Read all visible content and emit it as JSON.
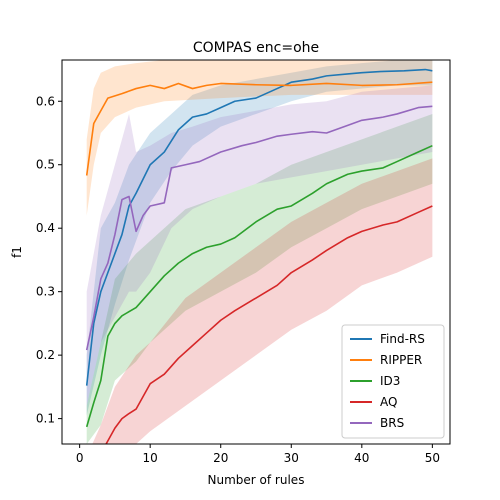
{
  "chart_data": {
    "type": "line",
    "title": "COMPAS enc=ohe",
    "xlabel": "Number of rules",
    "ylabel": "f1",
    "xlim": [
      -2.5,
      52.5
    ],
    "ylim": [
      0.06,
      0.665
    ],
    "xticks": [
      0,
      10,
      20,
      30,
      40,
      50
    ],
    "yticks": [
      0.1,
      0.2,
      0.3,
      0.4,
      0.5,
      0.6
    ],
    "xtick_labels": [
      "0",
      "10",
      "20",
      "30",
      "40",
      "50"
    ],
    "ytick_labels": [
      "0.1",
      "0.2",
      "0.3",
      "0.4",
      "0.5",
      "0.6"
    ],
    "grid": false,
    "legend_position": "lower-right",
    "band_opacity": 0.2,
    "series": [
      {
        "name": "Find-RS",
        "color": "#1f77b4",
        "points": [
          [
            1,
            0.152
          ],
          [
            2,
            0.25
          ],
          [
            3,
            0.3
          ],
          [
            4,
            0.33
          ],
          [
            5,
            0.36
          ],
          [
            6,
            0.39
          ],
          [
            7,
            0.435
          ],
          [
            8,
            0.455
          ],
          [
            10,
            0.5
          ],
          [
            12,
            0.52
          ],
          [
            14,
            0.555
          ],
          [
            16,
            0.575
          ],
          [
            18,
            0.58
          ],
          [
            20,
            0.59
          ],
          [
            22,
            0.6
          ],
          [
            25,
            0.605
          ],
          [
            28,
            0.62
          ],
          [
            30,
            0.63
          ],
          [
            33,
            0.635
          ],
          [
            35,
            0.64
          ],
          [
            38,
            0.643
          ],
          [
            40,
            0.645
          ],
          [
            43,
            0.647
          ],
          [
            46,
            0.648
          ],
          [
            49,
            0.65
          ],
          [
            50,
            0.648
          ]
        ],
        "band": [
          [
            1,
            0.105,
            0.2
          ],
          [
            3,
            0.2,
            0.4
          ],
          [
            5,
            0.28,
            0.44
          ],
          [
            7,
            0.35,
            0.5
          ],
          [
            10,
            0.44,
            0.55
          ],
          [
            13,
            0.49,
            0.58
          ],
          [
            16,
            0.53,
            0.61
          ],
          [
            20,
            0.56,
            0.625
          ],
          [
            25,
            0.58,
            0.635
          ],
          [
            30,
            0.6,
            0.645
          ],
          [
            35,
            0.615,
            0.655
          ],
          [
            40,
            0.62,
            0.66
          ],
          [
            45,
            0.625,
            0.665
          ],
          [
            50,
            0.625,
            0.665
          ]
        ]
      },
      {
        "name": "RIPPER",
        "color": "#ff7f0e",
        "points": [
          [
            1,
            0.483
          ],
          [
            2,
            0.565
          ],
          [
            3,
            0.585
          ],
          [
            4,
            0.605
          ],
          [
            6,
            0.612
          ],
          [
            8,
            0.62
          ],
          [
            10,
            0.625
          ],
          [
            12,
            0.62
          ],
          [
            14,
            0.628
          ],
          [
            16,
            0.62
          ],
          [
            18,
            0.625
          ],
          [
            20,
            0.628
          ],
          [
            25,
            0.626
          ],
          [
            30,
            0.625
          ],
          [
            35,
            0.628
          ],
          [
            40,
            0.625
          ],
          [
            45,
            0.626
          ],
          [
            50,
            0.63
          ]
        ],
        "band": [
          [
            1,
            0.42,
            0.54
          ],
          [
            2,
            0.5,
            0.62
          ],
          [
            3,
            0.55,
            0.645
          ],
          [
            5,
            0.575,
            0.655
          ],
          [
            8,
            0.59,
            0.66
          ],
          [
            12,
            0.6,
            0.665
          ],
          [
            20,
            0.605,
            0.665
          ],
          [
            30,
            0.61,
            0.665
          ],
          [
            40,
            0.61,
            0.665
          ],
          [
            50,
            0.61,
            0.665
          ]
        ]
      },
      {
        "name": "ID3",
        "color": "#2ca02c",
        "points": [
          [
            1,
            0.087
          ],
          [
            2,
            0.125
          ],
          [
            3,
            0.16
          ],
          [
            4,
            0.23
          ],
          [
            5,
            0.25
          ],
          [
            6,
            0.262
          ],
          [
            8,
            0.275
          ],
          [
            10,
            0.3
          ],
          [
            12,
            0.325
          ],
          [
            14,
            0.345
          ],
          [
            16,
            0.36
          ],
          [
            18,
            0.37
          ],
          [
            20,
            0.375
          ],
          [
            22,
            0.385
          ],
          [
            25,
            0.41
          ],
          [
            28,
            0.43
          ],
          [
            30,
            0.435
          ],
          [
            33,
            0.455
          ],
          [
            35,
            0.47
          ],
          [
            38,
            0.485
          ],
          [
            40,
            0.49
          ],
          [
            43,
            0.495
          ],
          [
            45,
            0.505
          ],
          [
            48,
            0.52
          ],
          [
            50,
            0.53
          ]
        ],
        "band": [
          [
            1,
            0.06,
            0.12
          ],
          [
            3,
            0.09,
            0.22
          ],
          [
            5,
            0.16,
            0.32
          ],
          [
            8,
            0.19,
            0.36
          ],
          [
            10,
            0.22,
            0.38
          ],
          [
            15,
            0.27,
            0.43
          ],
          [
            20,
            0.3,
            0.45
          ],
          [
            25,
            0.33,
            0.47
          ],
          [
            30,
            0.37,
            0.5
          ],
          [
            35,
            0.4,
            0.52
          ],
          [
            40,
            0.43,
            0.54
          ],
          [
            45,
            0.45,
            0.56
          ],
          [
            50,
            0.47,
            0.58
          ]
        ]
      },
      {
        "name": "AQ",
        "color": "#d62728",
        "points": [
          [
            1,
            0.02
          ],
          [
            3,
            0.045
          ],
          [
            4,
            0.065
          ],
          [
            5,
            0.085
          ],
          [
            6,
            0.1
          ],
          [
            7,
            0.108
          ],
          [
            8,
            0.115
          ],
          [
            10,
            0.155
          ],
          [
            12,
            0.17
          ],
          [
            14,
            0.195
          ],
          [
            16,
            0.215
          ],
          [
            18,
            0.235
          ],
          [
            20,
            0.255
          ],
          [
            22,
            0.27
          ],
          [
            25,
            0.29
          ],
          [
            28,
            0.31
          ],
          [
            30,
            0.33
          ],
          [
            33,
            0.35
          ],
          [
            35,
            0.365
          ],
          [
            38,
            0.385
          ],
          [
            40,
            0.395
          ],
          [
            43,
            0.405
          ],
          [
            45,
            0.41
          ],
          [
            48,
            0.425
          ],
          [
            50,
            0.435
          ]
        ],
        "band": [
          [
            1,
            0.04,
            0.04
          ],
          [
            3,
            0.04,
            0.09
          ],
          [
            5,
            0.04,
            0.15
          ],
          [
            8,
            0.06,
            0.2
          ],
          [
            10,
            0.08,
            0.22
          ],
          [
            15,
            0.12,
            0.29
          ],
          [
            20,
            0.16,
            0.33
          ],
          [
            25,
            0.2,
            0.37
          ],
          [
            30,
            0.24,
            0.41
          ],
          [
            35,
            0.27,
            0.44
          ],
          [
            40,
            0.31,
            0.47
          ],
          [
            45,
            0.33,
            0.49
          ],
          [
            50,
            0.355,
            0.51
          ]
        ]
      },
      {
        "name": "BRS",
        "color": "#9467bd",
        "points": [
          [
            1,
            0.208
          ],
          [
            2,
            0.26
          ],
          [
            3,
            0.32
          ],
          [
            4,
            0.345
          ],
          [
            5,
            0.39
          ],
          [
            6,
            0.445
          ],
          [
            7,
            0.45
          ],
          [
            8,
            0.395
          ],
          [
            9,
            0.42
          ],
          [
            10,
            0.435
          ],
          [
            12,
            0.44
          ],
          [
            13,
            0.495
          ],
          [
            15,
            0.5
          ],
          [
            17,
            0.505
          ],
          [
            20,
            0.52
          ],
          [
            23,
            0.53
          ],
          [
            25,
            0.535
          ],
          [
            28,
            0.545
          ],
          [
            30,
            0.548
          ],
          [
            33,
            0.552
          ],
          [
            35,
            0.55
          ],
          [
            38,
            0.562
          ],
          [
            40,
            0.57
          ],
          [
            43,
            0.575
          ],
          [
            45,
            0.58
          ],
          [
            48,
            0.59
          ],
          [
            50,
            0.592
          ]
        ],
        "band": [
          [
            1,
            0.12,
            0.3
          ],
          [
            3,
            0.22,
            0.42
          ],
          [
            5,
            0.26,
            0.5
          ],
          [
            7,
            0.3,
            0.58
          ],
          [
            8,
            0.3,
            0.52
          ],
          [
            10,
            0.33,
            0.53
          ],
          [
            13,
            0.4,
            0.55
          ],
          [
            16,
            0.43,
            0.56
          ],
          [
            20,
            0.45,
            0.575
          ],
          [
            25,
            0.47,
            0.585
          ],
          [
            30,
            0.48,
            0.595
          ],
          [
            35,
            0.49,
            0.6
          ],
          [
            40,
            0.5,
            0.615
          ],
          [
            45,
            0.51,
            0.62
          ],
          [
            50,
            0.52,
            0.625
          ]
        ]
      }
    ]
  }
}
